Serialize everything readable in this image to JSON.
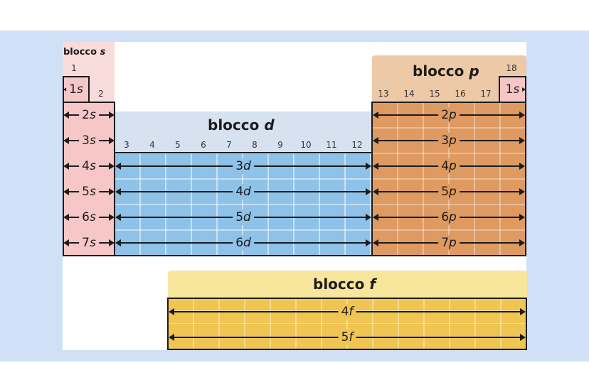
{
  "blocks": {
    "s": {
      "title_word": "blocco",
      "title_letter": "s",
      "color": "#f7c7c7"
    },
    "d": {
      "title_word": "blocco",
      "title_letter": "d",
      "color": "#8ec2e8"
    },
    "p": {
      "title_word": "blocco",
      "title_letter": "p",
      "color": "#de9a61"
    },
    "f": {
      "title_word": "blocco",
      "title_letter": "f",
      "color": "#f0c552"
    }
  },
  "groups": [
    "1",
    "2",
    "3",
    "4",
    "5",
    "6",
    "7",
    "8",
    "9",
    "10",
    "11",
    "12",
    "13",
    "14",
    "15",
    "16",
    "17",
    "18"
  ],
  "s_rows": [
    {
      "n": "1",
      "l": "s"
    },
    {
      "n": "2",
      "l": "s"
    },
    {
      "n": "3",
      "l": "s"
    },
    {
      "n": "4",
      "l": "s"
    },
    {
      "n": "5",
      "l": "s"
    },
    {
      "n": "6",
      "l": "s"
    },
    {
      "n": "7",
      "l": "s"
    }
  ],
  "helium": {
    "n": "1",
    "l": "s"
  },
  "d_rows": [
    {
      "n": "3",
      "l": "d"
    },
    {
      "n": "4",
      "l": "d"
    },
    {
      "n": "5",
      "l": "d"
    },
    {
      "n": "6",
      "l": "d"
    }
  ],
  "p_rows": [
    {
      "n": "2",
      "l": "p"
    },
    {
      "n": "3",
      "l": "p"
    },
    {
      "n": "4",
      "l": "p"
    },
    {
      "n": "5",
      "l": "p"
    },
    {
      "n": "6",
      "l": "p"
    },
    {
      "n": "7",
      "l": "p"
    }
  ],
  "f_rows": [
    {
      "n": "4",
      "l": "f"
    },
    {
      "n": "5",
      "l": "f"
    }
  ]
}
